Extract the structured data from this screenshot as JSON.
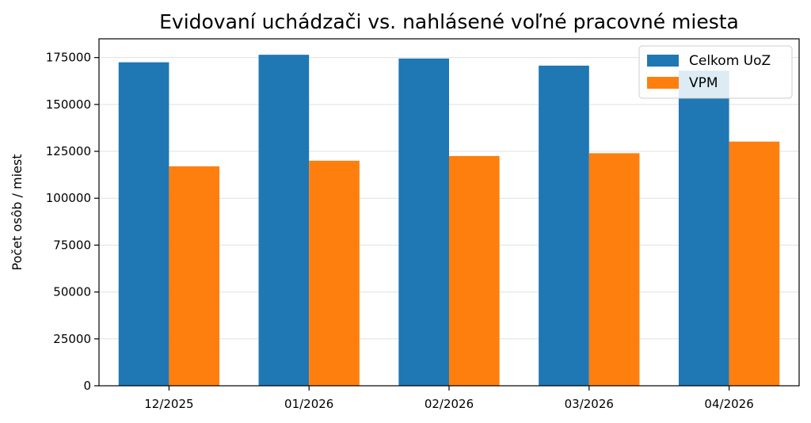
{
  "chart_data": {
    "type": "bar",
    "title": "Evidovaní uchádzači vs. nahlásené voľné pracovné miesta",
    "xlabel": "",
    "ylabel": "Počet osôb / miest",
    "categories": [
      "12/2025",
      "01/2026",
      "02/2026",
      "03/2026",
      "04/2026"
    ],
    "series": [
      {
        "name": "Celkom UoZ",
        "color": "#1f77b4",
        "values": [
          172500,
          176500,
          174500,
          170700,
          168000
        ]
      },
      {
        "name": "VPM",
        "color": "#ff7f0e",
        "values": [
          117000,
          120000,
          122500,
          124000,
          130200
        ]
      }
    ],
    "ylim": [
      0,
      185000
    ],
    "yticks": [
      0,
      25000,
      50000,
      75000,
      100000,
      125000,
      150000,
      175000
    ],
    "grid": "y",
    "legend": "top-right"
  }
}
